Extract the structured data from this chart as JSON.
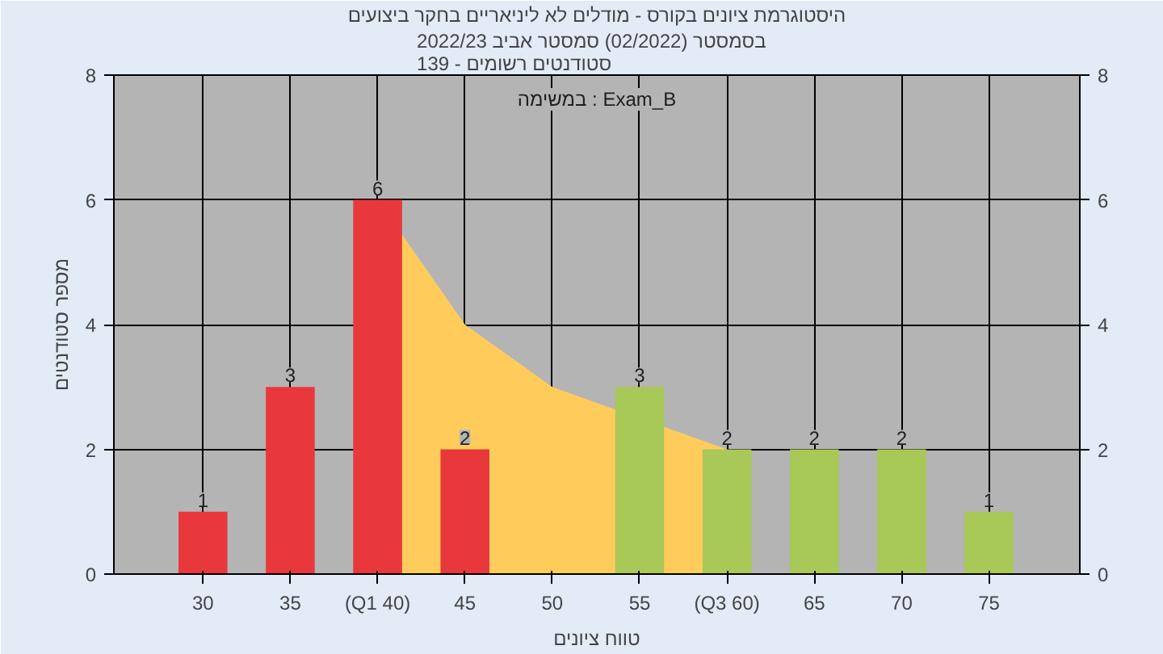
{
  "chart_data": {
    "type": "bar",
    "title": "היסטוגרמת ציונים בקורס - מודלים לא ליניאריים בחקר ביצועים",
    "subtitle": "בסמסטר  (02/2022)  סמסטר אביב 2022/23\nסטודנטים רשומים - 139",
    "xlabel": "טווח ציונים",
    "ylabel": "מספר סטודנטים",
    "annotations": [
      "במשימה : Exam_B"
    ],
    "categories": [
      "30",
      "35",
      "(Q1 40)",
      "45",
      "50",
      "55",
      "(Q3 60)",
      "65",
      "70",
      "75"
    ],
    "series": [
      {
        "type": "area",
        "color": "#ffcc5c",
        "values": [
          null,
          null,
          6,
          4,
          3,
          null,
          2,
          null,
          null,
          null
        ]
      },
      {
        "colors": [
          "#e8383c",
          "#e8383c",
          "#e8383c",
          "#e8383c",
          "#a8c858",
          "#a8c858",
          "#a8c858",
          "#a8c858",
          "#a8c858",
          "#a8c858"
        ],
        "values": [
          1,
          3,
          6,
          2,
          0,
          3,
          2,
          2,
          2,
          1
        ],
        "value_labels": [
          "1",
          "3",
          "6",
          "2",
          null,
          "3",
          "2",
          "2",
          "2",
          "1"
        ]
      }
    ],
    "ylim": [
      0,
      8
    ],
    "yticks": [
      0,
      2,
      4,
      6,
      8
    ],
    "y2lim": [
      0,
      8
    ],
    "y2ticks": [
      0,
      2,
      4,
      6,
      8
    ],
    "grid": true
  }
}
